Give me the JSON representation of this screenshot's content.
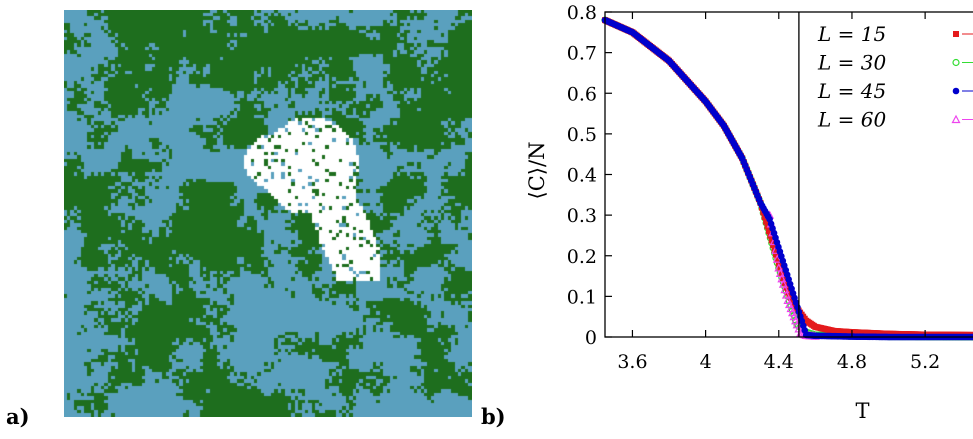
{
  "panel_labels": {
    "a": "a)",
    "b": "b)"
  },
  "lattice": {
    "colors": {
      "cluster_a": "#5aa0be",
      "cluster_b": "#1e6e1e",
      "removed": "#ffffff"
    },
    "grid_size": 120
  },
  "chart_data": {
    "type": "scatter",
    "title": "",
    "xlabel": "T",
    "ylabel": "⟨C⟩/N",
    "xlim": [
      3.45,
      5.5
    ],
    "ylim": [
      0,
      0.8
    ],
    "xticks": [
      3.6,
      4,
      4.4,
      4.8,
      5.2
    ],
    "xtick_labels": [
      "3.6",
      "4",
      "4.4",
      "4.8",
      "5.2"
    ],
    "yticks": [
      0,
      0.1,
      0.2,
      0.3,
      0.4,
      0.5,
      0.6,
      0.7,
      0.8
    ],
    "ytick_labels": [
      "0",
      "0.1",
      "0.2",
      "0.3",
      "0.4",
      "0.5",
      "0.6",
      "0.7",
      "0.8"
    ],
    "vline_x": 4.51,
    "grid": false,
    "legend_position": "top-right",
    "series": [
      {
        "name": "L = 15",
        "color": "#e41a1c",
        "marker": "square",
        "x": [
          3.45,
          3.6,
          3.8,
          4.0,
          4.1,
          4.2,
          4.3,
          4.4,
          4.45,
          4.5,
          4.55,
          4.6,
          4.7,
          4.8,
          5.0,
          5.2,
          5.5
        ],
        "y": [
          0.78,
          0.75,
          0.68,
          0.58,
          0.52,
          0.44,
          0.33,
          0.18,
          0.11,
          0.07,
          0.04,
          0.025,
          0.015,
          0.012,
          0.008,
          0.006,
          0.005
        ]
      },
      {
        "name": "L = 30",
        "color": "#33dd33",
        "marker": "circle-open",
        "x": [
          3.45,
          3.6,
          3.8,
          4.0,
          4.1,
          4.2,
          4.3,
          4.4,
          4.45,
          4.5,
          4.55,
          4.6,
          4.8,
          5.0,
          5.5
        ],
        "y": [
          0.78,
          0.75,
          0.68,
          0.58,
          0.52,
          0.44,
          0.33,
          0.17,
          0.1,
          0.03,
          0.012,
          0.005,
          0.002,
          0.001,
          0.0
        ]
      },
      {
        "name": "L = 45",
        "color": "#0000cc",
        "marker": "circle",
        "x": [
          3.45,
          3.6,
          3.8,
          4.0,
          4.1,
          4.2,
          4.3,
          4.35,
          4.55,
          4.6,
          4.8,
          5.0,
          5.2,
          5.5
        ],
        "y": [
          0.78,
          0.75,
          0.68,
          0.58,
          0.52,
          0.44,
          0.33,
          0.29,
          0.005,
          0.003,
          0.001,
          0.0,
          0.0,
          0.0
        ]
      },
      {
        "name": "L = 60",
        "color": "#ee44ee",
        "marker": "triangle-open",
        "x": [
          4.35,
          4.4,
          4.45,
          4.5,
          4.52,
          4.55,
          4.6
        ],
        "y": [
          0.3,
          0.17,
          0.09,
          0.03,
          0.01,
          0.004,
          0.002
        ]
      }
    ]
  }
}
